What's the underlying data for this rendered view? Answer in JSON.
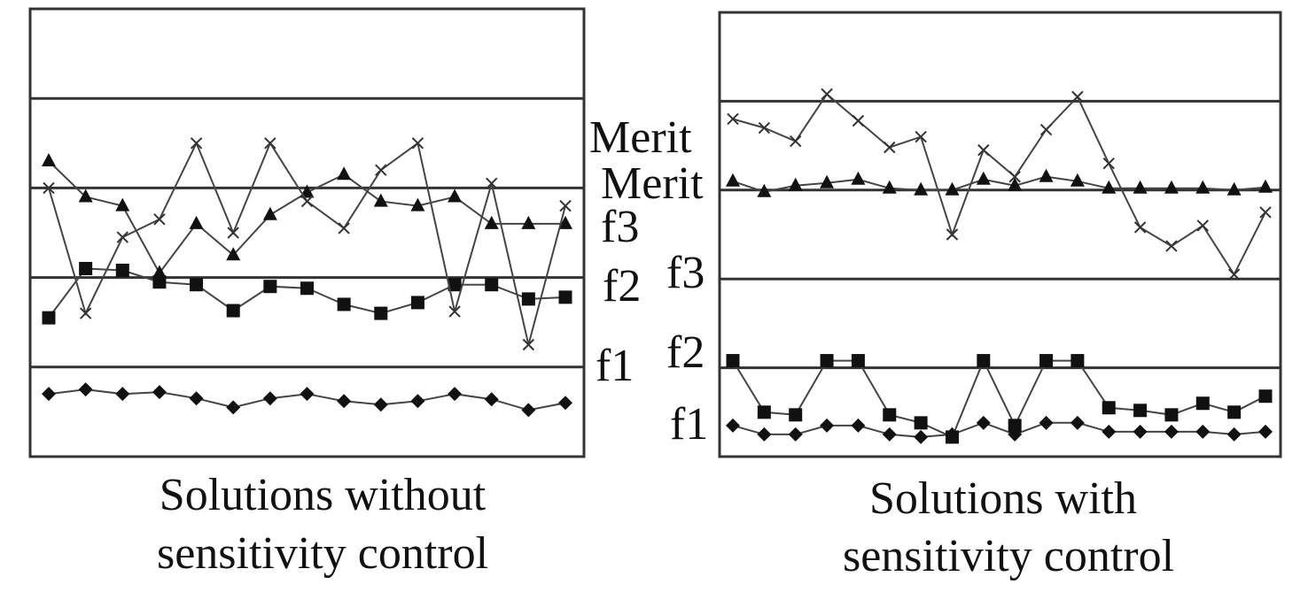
{
  "chart_data": [
    {
      "type": "line",
      "title": "Solutions without sensitivity control",
      "caption_lines": [
        "Solutions without",
        "sensitivity control"
      ],
      "x": [
        1,
        2,
        3,
        4,
        5,
        6,
        7,
        8,
        9,
        10,
        11,
        12,
        13,
        14,
        15
      ],
      "ylim": [
        0,
        5
      ],
      "gridlines": [
        1,
        2,
        3,
        4
      ],
      "series": [
        {
          "name": "f1",
          "label": "f1",
          "marker": "diamond",
          "values": [
            0.7,
            0.75,
            0.7,
            0.72,
            0.65,
            0.55,
            0.65,
            0.7,
            0.62,
            0.58,
            0.62,
            0.7,
            0.64,
            0.52,
            0.6
          ]
        },
        {
          "name": "f2",
          "label": "f2",
          "marker": "square",
          "values": [
            1.55,
            2.1,
            2.08,
            1.95,
            1.92,
            1.63,
            1.9,
            1.88,
            1.7,
            1.6,
            1.72,
            1.92,
            1.92,
            1.76,
            1.78
          ]
        },
        {
          "name": "f3",
          "label": "f3",
          "marker": "triangle",
          "values": [
            3.3,
            2.9,
            2.8,
            2.05,
            2.6,
            2.25,
            2.7,
            2.95,
            3.15,
            2.85,
            2.8,
            2.9,
            2.6,
            2.6,
            2.6
          ]
        },
        {
          "name": "Merit",
          "label": "Merit",
          "marker": "x",
          "values": [
            3.0,
            1.6,
            2.45,
            2.65,
            3.5,
            2.5,
            3.5,
            2.85,
            2.55,
            3.2,
            3.5,
            1.62,
            3.05,
            1.25,
            2.8
          ]
        }
      ]
    },
    {
      "type": "line",
      "title": "Solutions with sensitivity control",
      "caption_lines": [
        "Solutions with",
        "sensitivity control"
      ],
      "x": [
        1,
        2,
        3,
        4,
        5,
        6,
        7,
        8,
        9,
        10,
        11,
        12,
        13,
        14,
        15,
        16,
        17,
        18
      ],
      "ylim": [
        0,
        5
      ],
      "gridlines": [
        1,
        2,
        3,
        4
      ],
      "series": [
        {
          "name": "f1",
          "label": "f1",
          "marker": "diamond",
          "values": [
            0.35,
            0.25,
            0.25,
            0.35,
            0.35,
            0.25,
            0.22,
            0.25,
            0.38,
            0.25,
            0.38,
            0.38,
            0.28,
            0.28,
            0.28,
            0.28,
            0.25,
            0.28
          ]
        },
        {
          "name": "f2",
          "label": "f2",
          "marker": "square",
          "values": [
            1.08,
            0.5,
            0.47,
            1.08,
            1.08,
            0.47,
            0.38,
            0.22,
            1.08,
            0.35,
            1.08,
            1.08,
            0.55,
            0.52,
            0.47,
            0.6,
            0.5,
            0.68
          ]
        },
        {
          "name": "f3",
          "label": "f3",
          "marker": "triangle",
          "values": [
            3.1,
            2.98,
            3.05,
            3.08,
            3.12,
            3.02,
            3.0,
            3.0,
            3.12,
            3.05,
            3.15,
            3.1,
            3.02,
            3.02,
            3.02,
            3.02,
            3.0,
            3.03
          ]
        },
        {
          "name": "Merit",
          "label": "Merit",
          "marker": "x",
          "values": [
            3.8,
            3.7,
            3.55,
            4.08,
            3.78,
            3.48,
            3.6,
            2.5,
            3.45,
            3.15,
            3.68,
            4.05,
            3.3,
            2.58,
            2.37,
            2.6,
            2.05,
            2.75
          ]
        }
      ]
    }
  ]
}
